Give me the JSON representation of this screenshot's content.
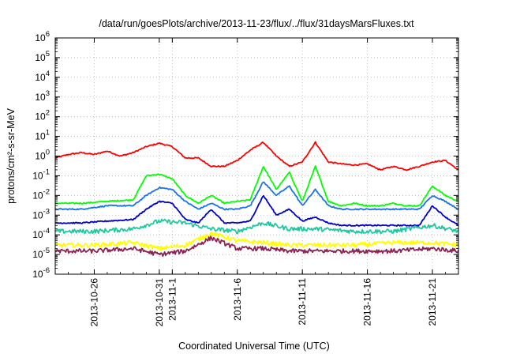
{
  "chart_data": {
    "type": "line",
    "title": "/data/run/goesPlots/archive/2013-11-23/flux/../flux/31daysMarsFluxes.txt",
    "xlabel": "Coordinated Universal Time (UTC)",
    "ylabel": "protons/cm²-s-sr-MeV",
    "y_scale": "log",
    "ylim": [
      1e-06,
      1000000.0
    ],
    "y_ticks": [
      {
        "base": "10",
        "exp": "-6"
      },
      {
        "base": "10",
        "exp": "-5"
      },
      {
        "base": "10",
        "exp": "-4"
      },
      {
        "base": "10",
        "exp": "-3"
      },
      {
        "base": "10",
        "exp": "-2"
      },
      {
        "base": "10",
        "exp": "-1"
      },
      {
        "base": "10",
        "exp": "0"
      },
      {
        "base": "10",
        "exp": "1"
      },
      {
        "base": "10",
        "exp": "2"
      },
      {
        "base": "10",
        "exp": "3"
      },
      {
        "base": "10",
        "exp": "4"
      },
      {
        "base": "10",
        "exp": "5"
      },
      {
        "base": "10",
        "exp": "6"
      }
    ],
    "xlim": [
      "2013-10-23",
      "2013-11-23"
    ],
    "x_ticks": [
      {
        "date": "2013-10-26",
        "label": "2013-10-26"
      },
      {
        "date": "2013-10-31",
        "label": "2013-10-31"
      },
      {
        "date": "2013-11-01",
        "label": "2013-11-1"
      },
      {
        "date": "2013-11-06",
        "label": "2013-11-6"
      },
      {
        "date": "2013-11-11",
        "label": "2013-11-11"
      },
      {
        "date": "2013-11-16",
        "label": "2013-11-16"
      },
      {
        "date": "2013-11-21",
        "label": "2013-11-21"
      }
    ],
    "grid": true,
    "legend": "none",
    "series": [
      {
        "color": "#ff0000",
        "x": [
          "2013-10-23",
          "2013-10-24",
          "2013-10-25",
          "2013-10-26",
          "2013-10-27",
          "2013-10-28",
          "2013-10-29",
          "2013-10-30",
          "2013-10-31",
          "2013-11-01",
          "2013-11-02",
          "2013-11-03",
          "2013-11-04",
          "2013-11-05",
          "2013-11-06",
          "2013-11-07",
          "2013-11-08",
          "2013-11-09",
          "2013-11-10",
          "2013-11-11",
          "2013-11-12",
          "2013-11-13",
          "2013-11-14",
          "2013-11-15",
          "2013-11-16",
          "2013-11-17",
          "2013-11-18",
          "2013-11-19",
          "2013-11-20",
          "2013-11-21",
          "2013-11-22",
          "2013-11-23"
        ],
        "y": [
          0.8,
          1.2,
          1.5,
          1.2,
          1.8,
          1.0,
          1.5,
          3.0,
          4.5,
          3.0,
          0.8,
          0.8,
          0.3,
          0.3,
          0.6,
          2.0,
          5.0,
          1.0,
          0.3,
          0.5,
          5.0,
          0.5,
          0.4,
          0.35,
          0.4,
          0.2,
          0.3,
          0.2,
          0.3,
          0.5,
          0.6,
          0.2
        ]
      },
      {
        "color": "#00ff00",
        "x": [
          "2013-10-23",
          "2013-10-25",
          "2013-10-27",
          "2013-10-29",
          "2013-10-30",
          "2013-10-31",
          "2013-11-01",
          "2013-11-02",
          "2013-11-03",
          "2013-11-04",
          "2013-11-05",
          "2013-11-06",
          "2013-11-07",
          "2013-11-08",
          "2013-11-09",
          "2013-11-10",
          "2013-11-11",
          "2013-11-12",
          "2013-11-13",
          "2013-11-14",
          "2013-11-15",
          "2013-11-16",
          "2013-11-17",
          "2013-11-18",
          "2013-11-19",
          "2013-11-20",
          "2013-11-21",
          "2013-11-22",
          "2013-11-23"
        ],
        "y": [
          0.004,
          0.004,
          0.005,
          0.006,
          0.1,
          0.12,
          0.07,
          0.01,
          0.004,
          0.01,
          0.004,
          0.005,
          0.006,
          0.3,
          0.02,
          0.15,
          0.005,
          0.3,
          0.005,
          0.003,
          0.004,
          0.003,
          0.003,
          0.004,
          0.003,
          0.003,
          0.03,
          0.01,
          0.005
        ]
      },
      {
        "color": "#1a73e8",
        "x": [
          "2013-10-23",
          "2013-10-25",
          "2013-10-27",
          "2013-10-29",
          "2013-10-30",
          "2013-10-31",
          "2013-11-01",
          "2013-11-02",
          "2013-11-03",
          "2013-11-04",
          "2013-11-05",
          "2013-11-06",
          "2013-11-07",
          "2013-11-08",
          "2013-11-09",
          "2013-11-10",
          "2013-11-11",
          "2013-11-12",
          "2013-11-13",
          "2013-11-14",
          "2013-11-15",
          "2013-11-16",
          "2013-11-17",
          "2013-11-18",
          "2013-11-19",
          "2013-11-20",
          "2013-11-21",
          "2013-11-22",
          "2013-11-23"
        ],
        "y": [
          0.002,
          0.002,
          0.003,
          0.003,
          0.01,
          0.025,
          0.02,
          0.005,
          0.002,
          0.004,
          0.002,
          0.002,
          0.003,
          0.05,
          0.01,
          0.03,
          0.003,
          0.02,
          0.003,
          0.002,
          0.002,
          0.002,
          0.002,
          0.002,
          0.002,
          0.002,
          0.01,
          0.005,
          0.002
        ]
      },
      {
        "color": "#0000cc",
        "x": [
          "2013-10-23",
          "2013-10-25",
          "2013-10-27",
          "2013-10-29",
          "2013-10-30",
          "2013-10-31",
          "2013-11-01",
          "2013-11-02",
          "2013-11-03",
          "2013-11-04",
          "2013-11-05",
          "2013-11-06",
          "2013-11-07",
          "2013-11-08",
          "2013-11-09",
          "2013-11-10",
          "2013-11-11",
          "2013-11-12",
          "2013-11-13",
          "2013-11-14",
          "2013-11-15",
          "2013-11-16",
          "2013-11-17",
          "2013-11-18",
          "2013-11-19",
          "2013-11-20",
          "2013-11-21",
          "2013-11-22",
          "2013-11-23"
        ],
        "y": [
          0.0004,
          0.0004,
          0.0005,
          0.0006,
          0.002,
          0.005,
          0.004,
          0.0006,
          0.0004,
          0.002,
          0.0004,
          0.0004,
          0.0005,
          0.01,
          0.001,
          0.002,
          0.0005,
          0.0008,
          0.0004,
          0.0003,
          0.0003,
          0.0003,
          0.0003,
          0.0003,
          0.0003,
          0.0003,
          0.003,
          0.0008,
          0.0003
        ]
      },
      {
        "color": "#20c8a0",
        "x": [
          "2013-10-23",
          "2013-10-26",
          "2013-10-29",
          "2013-10-31",
          "2013-11-02",
          "2013-11-04",
          "2013-11-06",
          "2013-11-08",
          "2013-11-10",
          "2013-11-12",
          "2013-11-15",
          "2013-11-18",
          "2013-11-21",
          "2013-11-23"
        ],
        "y": [
          0.00015,
          0.00015,
          0.0002,
          0.0005,
          0.0004,
          0.0002,
          0.00015,
          0.0004,
          0.0002,
          0.0002,
          0.00015,
          0.00015,
          0.0003,
          0.00015
        ]
      },
      {
        "color": "#ffff00",
        "x": [
          "2013-10-23",
          "2013-10-26",
          "2013-10-29",
          "2013-10-31",
          "2013-11-02",
          "2013-11-04",
          "2013-11-06",
          "2013-11-08",
          "2013-11-10",
          "2013-11-12",
          "2013-11-15",
          "2013-11-18",
          "2013-11-21",
          "2013-11-23"
        ],
        "y": [
          3e-05,
          3e-05,
          4e-05,
          2e-05,
          3e-05,
          0.00012,
          5e-05,
          4e-05,
          3e-05,
          3e-05,
          3e-05,
          4e-05,
          4e-05,
          3e-05
        ]
      },
      {
        "color": "#8b2252",
        "x": [
          "2013-10-23",
          "2013-10-26",
          "2013-10-29",
          "2013-10-31",
          "2013-11-02",
          "2013-11-04",
          "2013-11-06",
          "2013-11-08",
          "2013-11-10",
          "2013-11-12",
          "2013-11-15",
          "2013-11-18",
          "2013-11-21",
          "2013-11-23"
        ],
        "y": [
          1.5e-05,
          1.5e-05,
          2e-05,
          1e-05,
          1.5e-05,
          7e-05,
          2e-05,
          2e-05,
          1.5e-05,
          1.5e-05,
          1.5e-05,
          1.5e-05,
          2e-05,
          1.5e-05
        ]
      }
    ]
  }
}
